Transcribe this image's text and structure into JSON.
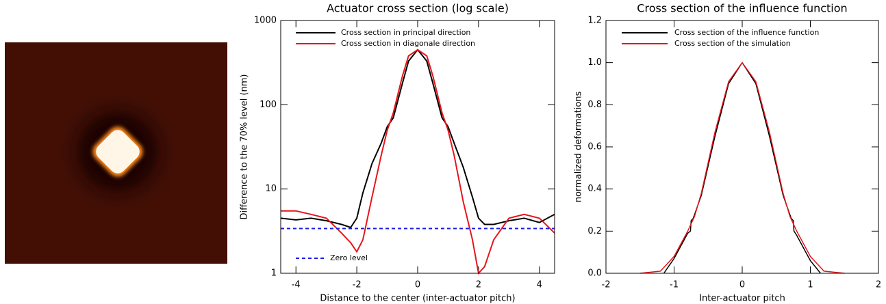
{
  "chart_data": [
    {
      "type": "line",
      "title": "Actuator cross section (log scale)",
      "x_label": "Distance to the center (inter-actuator pitch)",
      "y_label": "Difference to the 70% level (nm)",
      "ylog": true,
      "xlim": [
        -4.5,
        4.5
      ],
      "xticks": [
        -4,
        -2,
        0,
        2,
        4
      ],
      "ylim": [
        1,
        1000
      ],
      "yticks": [
        1,
        10,
        100,
        1000
      ],
      "legend": "upper left",
      "series": [
        {
          "name": "Cross section in principal direction",
          "color": "#000000",
          "x": [
            -4.5,
            -4,
            -3.5,
            -3,
            -2.5,
            -2.2,
            -2,
            -1.8,
            -1.5,
            -1.2,
            -1,
            -0.8,
            -0.5,
            -0.3,
            0,
            0.3,
            0.5,
            0.8,
            1,
            1.2,
            1.5,
            1.8,
            2,
            2.2,
            2.5,
            3,
            3.5,
            4,
            4.5
          ],
          "values": [
            4.5,
            4.3,
            4.5,
            4.2,
            3.8,
            3.5,
            4.5,
            9,
            20,
            35,
            55,
            70,
            180,
            330,
            450,
            330,
            180,
            70,
            55,
            35,
            18,
            8,
            4.5,
            3.8,
            3.8,
            4.2,
            4.5,
            4,
            5
          ]
        },
        {
          "name": "Cross section in diagonale direction",
          "color": "#e8141a",
          "x": [
            -4.5,
            -4,
            -3.5,
            -3,
            -2.5,
            -2.2,
            -2,
            -1.8,
            -1.5,
            -1.2,
            -1,
            -0.8,
            -0.5,
            -0.3,
            0,
            0.3,
            0.5,
            0.8,
            1,
            1.2,
            1.5,
            1.8,
            2,
            2.2,
            2.5,
            3,
            3.5,
            4,
            4.5
          ],
          "values": [
            5.5,
            5.5,
            5,
            4.5,
            3,
            2.3,
            1.8,
            2.5,
            8,
            25,
            50,
            80,
            220,
            380,
            450,
            380,
            220,
            80,
            50,
            25,
            7,
            2.5,
            1,
            1.2,
            2.5,
            4.5,
            5,
            4.5,
            3
          ]
        },
        {
          "name": "Zero level",
          "color": "#1a1ae6",
          "dashed": true,
          "label_position": "lower left",
          "x": [
            -4.5,
            4.5
          ],
          "values": [
            3.4,
            3.4
          ]
        }
      ]
    },
    {
      "type": "line",
      "title": "Cross section of the influence function",
      "x_label": "Inter-actuator pitch",
      "y_label": "normalized deformations",
      "xlim": [
        -2,
        2
      ],
      "xticks": [
        -2,
        -1,
        0,
        1,
        2
      ],
      "ylim": [
        0,
        1.2
      ],
      "yticks": [
        {
          "value": 0,
          "label": "0.0"
        },
        0.2,
        0.4,
        0.6,
        0.8,
        {
          "value": 1,
          "label": "1.0"
        },
        1.2
      ],
      "legend": "upper left",
      "series": [
        {
          "name": "Cross section of the influence function",
          "color": "#000000",
          "x": [
            -1.15,
            -1,
            -0.8,
            -0.76,
            -0.75,
            -0.72,
            -0.6,
            -0.4,
            -0.2,
            0,
            0.2,
            0.4,
            0.6,
            0.72,
            0.75,
            0.76,
            0.8,
            1,
            1.15
          ],
          "values": [
            0,
            0.07,
            0.19,
            0.2,
            0.25,
            0.26,
            0.37,
            0.65,
            0.9,
            1,
            0.9,
            0.65,
            0.37,
            0.26,
            0.25,
            0.2,
            0.18,
            0.06,
            0
          ]
        },
        {
          "name": "Cross section of the simulation",
          "color": "#e8141a",
          "x": [
            -1.5,
            -1.2,
            -1,
            -0.8,
            -0.7,
            -0.6,
            -0.4,
            -0.2,
            0,
            0.2,
            0.4,
            0.6,
            0.7,
            0.8,
            1,
            1.2,
            1.5
          ],
          "values": [
            0,
            0.01,
            0.08,
            0.2,
            0.27,
            0.38,
            0.67,
            0.91,
            1,
            0.91,
            0.67,
            0.38,
            0.27,
            0.2,
            0.08,
            0.01,
            0
          ]
        }
      ]
    }
  ]
}
